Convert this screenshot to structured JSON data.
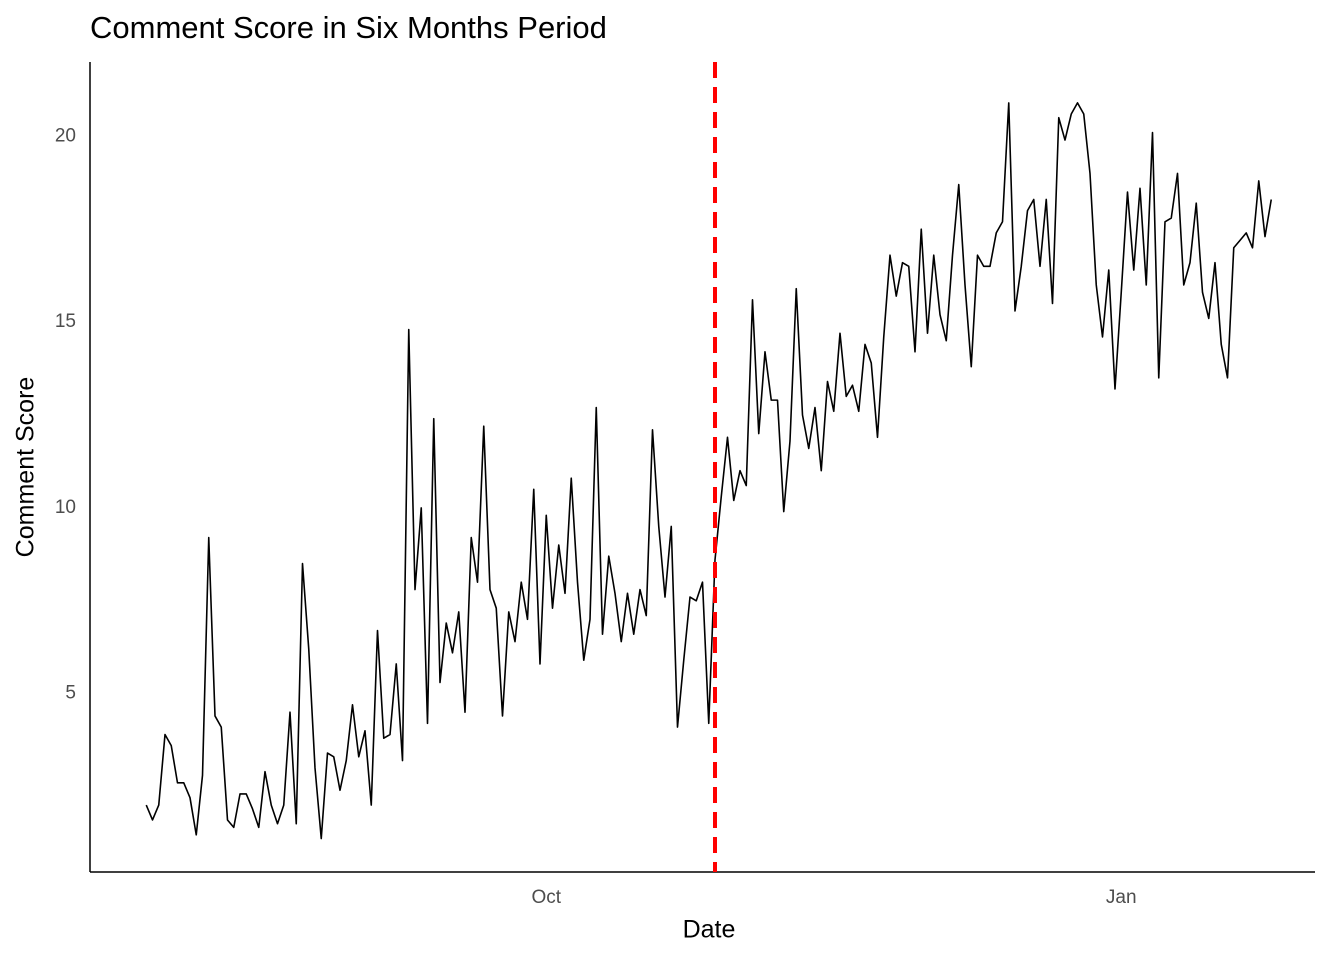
{
  "chart_data": {
    "type": "line",
    "title": "Comment Score in Six Months Period",
    "x_label": "Date",
    "y_label": "Comment Score",
    "x": [
      0,
      1,
      2,
      3,
      4,
      5,
      6,
      7,
      8,
      9,
      10,
      11,
      12,
      13,
      14,
      15,
      16,
      17,
      18,
      19,
      20,
      21,
      22,
      23,
      24,
      25,
      26,
      27,
      28,
      29,
      30,
      31,
      32,
      33,
      34,
      35,
      36,
      37,
      38,
      39,
      40,
      41,
      42,
      43,
      44,
      45,
      46,
      47,
      48,
      49,
      50,
      51,
      52,
      53,
      54,
      55,
      56,
      57,
      58,
      59,
      60,
      61,
      62,
      63,
      64,
      65,
      66,
      67,
      68,
      69,
      70,
      71,
      72,
      73,
      74,
      75,
      76,
      77,
      78,
      79,
      80,
      81,
      82,
      83,
      84,
      85,
      86,
      87,
      88,
      89,
      90,
      91,
      92,
      93,
      94,
      95,
      96,
      97,
      98,
      99,
      100,
      101,
      102,
      103,
      104,
      105,
      106,
      107,
      108,
      109,
      110,
      111,
      112,
      113,
      114,
      115,
      116,
      117,
      118,
      119,
      120,
      121,
      122,
      123,
      124,
      125,
      126,
      127,
      128,
      129,
      130,
      131,
      132,
      133,
      134,
      135,
      136,
      137,
      138,
      139,
      140,
      141,
      142,
      143,
      144,
      145,
      146,
      147,
      148,
      149,
      150,
      151,
      152,
      153,
      154,
      155,
      156,
      157,
      158,
      159,
      160,
      161,
      162,
      163,
      164,
      165,
      166,
      167,
      168,
      169,
      170,
      171,
      172,
      173,
      174,
      175,
      176,
      177,
      178,
      179,
      180
    ],
    "values": [
      2.0,
      1.6,
      2.0,
      3.9,
      3.6,
      2.6,
      2.6,
      2.2,
      1.2,
      2.8,
      9.2,
      4.4,
      4.1,
      1.6,
      1.4,
      2.3,
      2.3,
      1.9,
      1.4,
      2.9,
      2.0,
      1.5,
      2.0,
      4.5,
      1.5,
      8.5,
      6.2,
      3.0,
      1.1,
      3.4,
      3.3,
      2.4,
      3.2,
      4.7,
      3.3,
      4.0,
      2.0,
      6.7,
      3.8,
      3.9,
      5.8,
      3.2,
      14.8,
      7.8,
      10.0,
      4.2,
      12.4,
      5.3,
      6.9,
      6.1,
      7.2,
      4.5,
      9.2,
      8.0,
      12.2,
      7.8,
      7.3,
      4.4,
      7.2,
      6.4,
      8.0,
      7.0,
      10.5,
      5.8,
      9.8,
      7.3,
      9.0,
      7.7,
      10.8,
      8.0,
      5.9,
      7.0,
      12.7,
      6.6,
      8.7,
      7.7,
      6.4,
      7.7,
      6.6,
      7.8,
      7.1,
      12.1,
      9.5,
      7.6,
      9.5,
      4.1,
      5.9,
      7.6,
      7.5,
      8.0,
      4.2,
      8.6,
      10.3,
      11.9,
      10.2,
      11.0,
      10.6,
      15.6,
      12.0,
      14.2,
      12.9,
      12.9,
      9.9,
      11.8,
      15.9,
      12.5,
      11.6,
      12.7,
      11.0,
      13.4,
      12.6,
      14.7,
      13.0,
      13.3,
      12.6,
      14.4,
      13.9,
      11.9,
      14.6,
      16.8,
      15.7,
      16.6,
      16.5,
      14.2,
      17.5,
      14.7,
      16.8,
      15.2,
      14.5,
      16.8,
      18.7,
      16.0,
      13.8,
      16.8,
      16.5,
      16.5,
      17.4,
      17.7,
      20.9,
      15.3,
      16.5,
      18.0,
      18.3,
      16.5,
      18.3,
      15.5,
      20.5,
      19.9,
      20.6,
      20.9,
      20.6,
      19.0,
      16.0,
      14.6,
      16.4,
      13.2,
      15.8,
      18.5,
      16.4,
      18.6,
      16.0,
      20.1,
      13.5,
      17.7,
      17.8,
      19.0,
      16.0,
      16.6,
      18.2,
      15.8,
      15.1,
      16.6,
      14.4,
      13.5,
      17.0,
      17.2,
      17.4,
      17.0,
      18.8,
      17.3,
      18.3
    ],
    "color": "#000000",
    "xlim": [
      -9,
      187
    ],
    "xticks": [
      {
        "value": 64,
        "label": "Oct"
      },
      {
        "value": 156,
        "label": "Jan"
      }
    ],
    "ylim": [
      0.2,
      22.0
    ],
    "yticks": [
      5,
      10,
      15,
      20
    ],
    "grid": false,
    "vline": {
      "x": 91,
      "color": "#ff0000"
    }
  }
}
